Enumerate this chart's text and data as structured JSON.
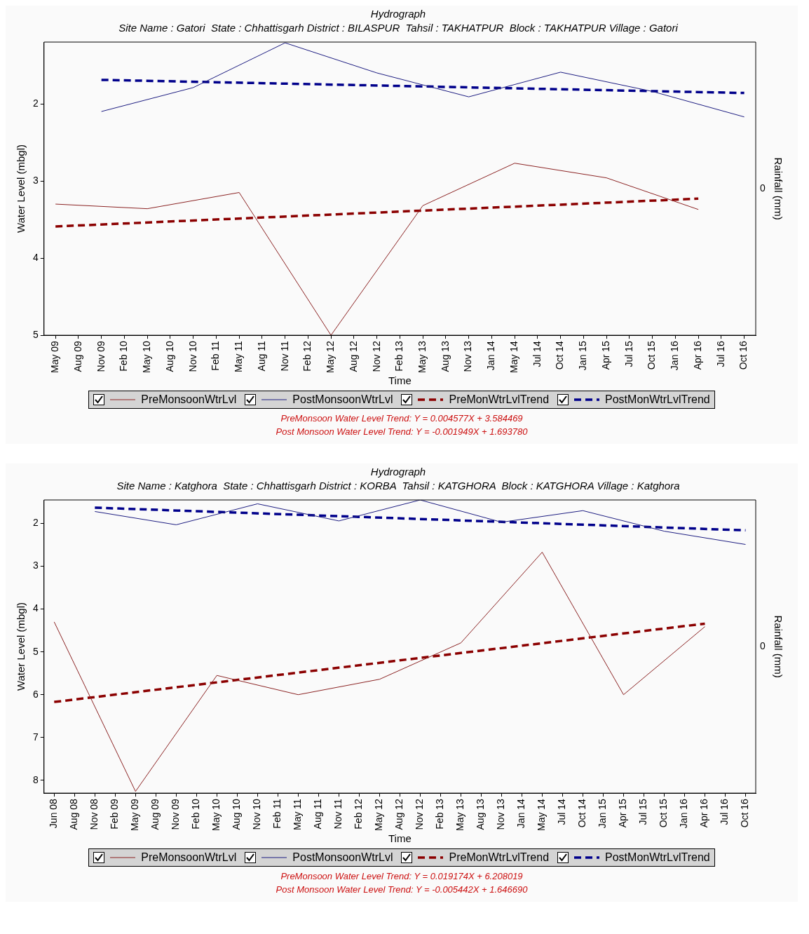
{
  "chart_data": [
    {
      "type": "line",
      "title": "Hydrograph",
      "subtitle": "Site Name : Gatori  State : Chhattisgarh District : BILASPUR  Tahsil : TAKHATPUR  Block : TAKHATPUR Village : Gatori",
      "xlabel": "Time",
      "ylabel": "Water Level (mbgl)",
      "y2label": "Rainfall (mm)",
      "categories": [
        "May 09",
        "Aug 09",
        "Nov 09",
        "Feb 10",
        "May 10",
        "Aug 10",
        "Nov 10",
        "Feb 11",
        "May 11",
        "Aug 11",
        "Nov 11",
        "Feb 12",
        "May 12",
        "Aug 12",
        "Nov 12",
        "Feb 13",
        "May 13",
        "Aug 13",
        "Nov 13",
        "Jan 14",
        "May 14",
        "Jul 14",
        "Oct 14",
        "Jan 15",
        "Apr 15",
        "Jul 15",
        "Oct 15",
        "Jan 16",
        "Apr 16",
        "Jul 16",
        "Oct 16"
      ],
      "series": [
        {
          "name": "PreMonsoonWtrLvl",
          "color": "#8b2323",
          "line_style": "solid",
          "values": [
            3.3,
            null,
            null,
            null,
            3.36,
            null,
            null,
            null,
            3.15,
            null,
            null,
            null,
            5.0,
            null,
            null,
            null,
            3.32,
            null,
            null,
            null,
            2.77,
            null,
            null,
            null,
            2.96,
            null,
            null,
            null,
            3.37,
            null,
            null
          ]
        },
        {
          "name": "PostMonsoonWtrLvl",
          "color": "#1c1c80",
          "line_style": "solid",
          "values": [
            null,
            null,
            2.1,
            null,
            null,
            null,
            1.79,
            null,
            null,
            null,
            1.21,
            null,
            null,
            null,
            1.6,
            null,
            null,
            null,
            1.91,
            null,
            null,
            null,
            1.59,
            null,
            null,
            null,
            1.84,
            null,
            null,
            null,
            2.17
          ]
        },
        {
          "name": "PreMonWtrLvlTrend",
          "color": "#8b0000",
          "line_style": "dashed",
          "values": [
            3.59,
            null,
            null,
            null,
            null,
            null,
            null,
            null,
            null,
            null,
            null,
            null,
            null,
            null,
            null,
            null,
            null,
            null,
            null,
            null,
            null,
            null,
            null,
            null,
            null,
            null,
            null,
            null,
            3.23,
            null,
            null
          ]
        },
        {
          "name": "PostMonWtrLvlTrend",
          "color": "#00008b",
          "line_style": "dashed",
          "values": [
            null,
            null,
            1.69,
            null,
            null,
            null,
            null,
            null,
            null,
            null,
            null,
            null,
            null,
            null,
            null,
            null,
            null,
            null,
            null,
            null,
            null,
            null,
            null,
            null,
            null,
            null,
            null,
            null,
            null,
            null,
            1.86
          ]
        }
      ],
      "ylim": [
        5,
        1.2
      ],
      "yticks": [
        2,
        3,
        4,
        5
      ],
      "grid": false,
      "legend": "bottom",
      "marker": "none",
      "annotations": [
        "0",
        "PreMonsoon Water Level Trend: Y = 0.004577X + 3.584469",
        "Post Monsoon Water Level Trend: Y = -0.001949X + 1.693780"
      ]
    },
    {
      "type": "line",
      "title": "Hydrograph",
      "subtitle": "Site Name : Katghora  State : Chhattisgarh District : KORBA  Tahsil : KATGHORA  Block : KATGHORA Village : Katghora",
      "xlabel": "Time",
      "ylabel": "Water Level (mbgl)",
      "y2label": "Rainfall (mm)",
      "categories": [
        "Jun 08",
        "Aug 08",
        "Nov 08",
        "Feb 09",
        "May 09",
        "Aug 09",
        "Nov 09",
        "Feb 10",
        "May 10",
        "Aug 10",
        "Nov 10",
        "Feb 11",
        "May 11",
        "Aug 11",
        "Nov 11",
        "Feb 12",
        "May 12",
        "Aug 12",
        "Nov 12",
        "Feb 13",
        "May 13",
        "Aug 13",
        "Nov 13",
        "Jan 14",
        "May 14",
        "Jul 14",
        "Oct 14",
        "Jan 15",
        "Apr 15",
        "Jul 15",
        "Oct 15",
        "Jan 16",
        "Apr 16",
        "Jul 16",
        "Oct 16"
      ],
      "series": [
        {
          "name": "PreMonsoonWtrLvl",
          "color": "#8b2323",
          "line_style": "solid",
          "values": [
            4.3,
            null,
            null,
            null,
            8.26,
            null,
            null,
            null,
            5.55,
            null,
            null,
            null,
            6.0,
            null,
            null,
            null,
            5.64,
            null,
            null,
            null,
            4.79,
            null,
            null,
            null,
            2.67,
            null,
            null,
            null,
            6.0,
            null,
            null,
            null,
            4.41,
            null,
            null
          ]
        },
        {
          "name": "PostMonsoonWtrLvl",
          "color": "#1c1c80",
          "line_style": "solid",
          "values": [
            null,
            null,
            1.72,
            null,
            null,
            null,
            2.03,
            null,
            null,
            null,
            1.54,
            null,
            null,
            null,
            1.94,
            null,
            null,
            null,
            1.45,
            null,
            null,
            null,
            1.97,
            null,
            null,
            null,
            1.7,
            null,
            null,
            null,
            2.18,
            null,
            null,
            null,
            2.49
          ]
        },
        {
          "name": "PreMonWtrLvlTrend",
          "color": "#8b0000",
          "line_style": "dashed",
          "values": [
            6.17,
            null,
            null,
            null,
            null,
            null,
            null,
            null,
            null,
            null,
            null,
            null,
            null,
            null,
            null,
            null,
            null,
            null,
            null,
            null,
            null,
            null,
            null,
            null,
            null,
            null,
            null,
            null,
            null,
            null,
            null,
            null,
            4.34,
            null,
            null
          ]
        },
        {
          "name": "PostMonWtrLvlTrend",
          "color": "#00008b",
          "line_style": "dashed",
          "values": [
            null,
            null,
            1.63,
            null,
            null,
            null,
            null,
            null,
            null,
            null,
            null,
            null,
            null,
            null,
            null,
            null,
            null,
            null,
            null,
            null,
            null,
            null,
            null,
            null,
            null,
            null,
            null,
            null,
            null,
            null,
            null,
            null,
            null,
            null,
            2.16
          ]
        }
      ],
      "ylim": [
        8.3,
        1.45
      ],
      "yticks": [
        2,
        3,
        4,
        5,
        6,
        7,
        8
      ],
      "grid": false,
      "legend": "bottom",
      "marker": "none",
      "annotations": [
        "0",
        "PreMonsoon Water Level Trend: Y = 0.019174X + 6.208019",
        "Post Monsoon Water Level Trend: Y = -0.005442X + 1.646690"
      ]
    }
  ]
}
